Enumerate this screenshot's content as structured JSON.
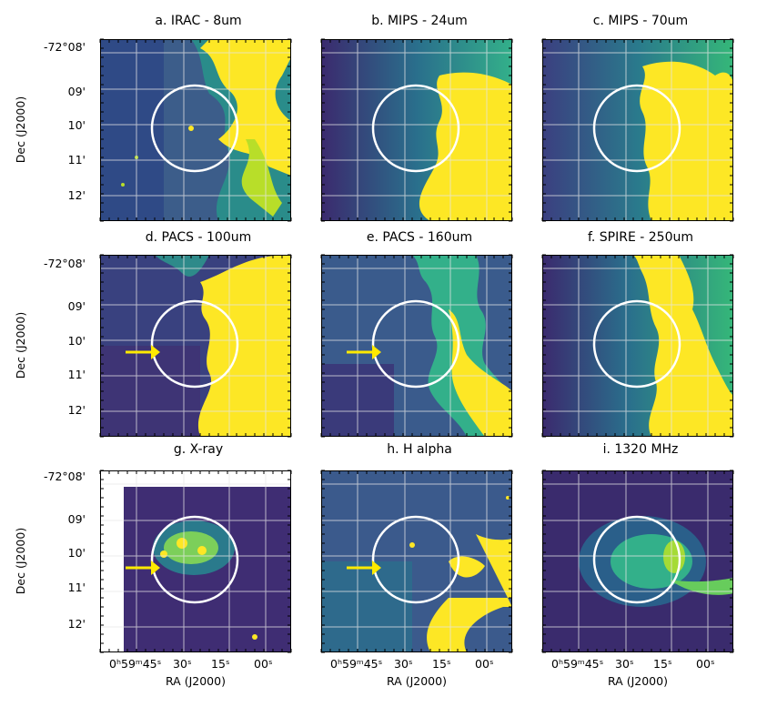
{
  "panels": [
    {
      "label": "a. IRAC - 8um"
    },
    {
      "label": "b. MIPS - 24um"
    },
    {
      "label": "c. MIPS - 70um"
    },
    {
      "label": "d. PACS - 100um"
    },
    {
      "label": "e. PACS - 160um"
    },
    {
      "label": "f. SPIRE - 250um"
    },
    {
      "label": "g. X-ray"
    },
    {
      "label": "h. H alpha"
    },
    {
      "label": "i. 1320 MHz"
    }
  ],
  "dec_ticks": [
    "-72°08'",
    "09'",
    "10'",
    "11'",
    "12'"
  ],
  "dec_axis_label": "Dec (J2000)",
  "ra_tick_first": "0ʰ59ᵐ45ˢ",
  "ra_tick_30": "30ˢ",
  "ra_tick_15": "15ˢ",
  "ra_tick_00": "00ˢ",
  "ra_axis_label": "RA (J2000)",
  "colors": {
    "low": "#3b2a6e",
    "mid": "#1f8a8a",
    "high": "#fde725",
    "circle": "#ffffff",
    "arrow": "#ffea00"
  }
}
